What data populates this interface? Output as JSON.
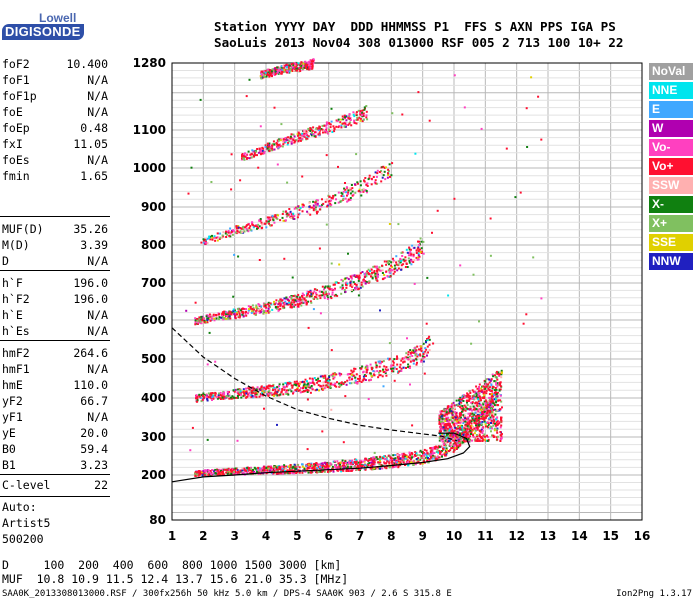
{
  "logo": {
    "top": "Lowell",
    "bottom": "DIGISONDE"
  },
  "header": {
    "line1": "Station YYYY DAY  DDD HHMMSS P1  FFS S AXN PPS IGA PS",
    "line2": "SaoLuis 2013 Nov04 308 013000 RSF 005 2 713 100 10+ 22"
  },
  "params": [
    {
      "name": "foF2",
      "value": "10.400"
    },
    {
      "name": "foF1",
      "value": "N/A"
    },
    {
      "name": "foF1p",
      "value": "N/A"
    },
    {
      "name": "foE",
      "value": "N/A"
    },
    {
      "name": "foEp",
      "value": "0.48"
    },
    {
      "name": "fxI",
      "value": "11.05"
    },
    {
      "name": "foEs",
      "value": "N/A"
    },
    {
      "name": "fmin",
      "value": "1.65"
    },
    {
      "name": "MUF(D)",
      "value": "35.26"
    },
    {
      "name": "M(D)",
      "value": "3.39"
    },
    {
      "name": "D",
      "value": "N/A"
    },
    {
      "name": "h`F",
      "value": "196.0"
    },
    {
      "name": "h`F2",
      "value": "196.0"
    },
    {
      "name": "h`E",
      "value": "N/A"
    },
    {
      "name": "h`Es",
      "value": "N/A"
    },
    {
      "name": "hmF2",
      "value": "264.6"
    },
    {
      "name": "hmF1",
      "value": "N/A"
    },
    {
      "name": "hmE",
      "value": "110.0"
    },
    {
      "name": "yF2",
      "value": "66.7"
    },
    {
      "name": "yF1",
      "value": "N/A"
    },
    {
      "name": "yE",
      "value": "20.0"
    },
    {
      "name": "B0",
      "value": "59.4"
    },
    {
      "name": "B1",
      "value": "3.23"
    },
    {
      "name": "C-level",
      "value": "22"
    }
  ],
  "auto": [
    "Auto:",
    "Artist5",
    "500200"
  ],
  "footer": {
    "d_line": "D     100  200  400  600  800 1000 1500 3000 [km]",
    "muf_line": "MUF  10.8 10.9 11.5 12.4 13.7 15.6 21.0 35.3 [MHz]",
    "file_line": "SAA0K_2013308013000.RSF / 300fx256h 50 kHz 5.0 km / DPS-4 SAA0K 903 / 2.6 S 315.8 E",
    "version": "Ion2Png 1.3.17"
  },
  "legend": [
    {
      "label": "NoVal",
      "color": "#a0a0a0"
    },
    {
      "label": "NNE",
      "color": "#00e5ee"
    },
    {
      "label": "E",
      "color": "#40a8ff"
    },
    {
      "label": "W",
      "color": "#b000b0"
    },
    {
      "label": "Vo-",
      "color": "#ff40c0"
    },
    {
      "label": "Vo+",
      "color": "#ff1030"
    },
    {
      "label": "SSW",
      "color": "#ffb0b0"
    },
    {
      "label": "X-",
      "color": "#108010"
    },
    {
      "label": "X+",
      "color": "#80c060"
    },
    {
      "label": "SSE",
      "color": "#e0d000"
    },
    {
      "label": "NNW",
      "color": "#2020c0"
    }
  ],
  "chart_data": {
    "type": "scatter",
    "x_label": "",
    "y_label": "",
    "xlim": [
      1,
      16
    ],
    "ylim": [
      80,
      1280
    ],
    "x_ticks": [
      1,
      2,
      3,
      4,
      5,
      6,
      7,
      8,
      9,
      10,
      11,
      12,
      13,
      14,
      15,
      16
    ],
    "y_ticks": [
      80,
      200,
      300,
      400,
      500,
      600,
      700,
      800,
      900,
      1000,
      1100,
      1280
    ],
    "grid": true,
    "traces": [
      {
        "name": "O1",
        "points": [
          [
            1.7,
            206
          ],
          [
            2,
            208
          ],
          [
            3,
            212
          ],
          [
            4,
            215
          ],
          [
            5,
            219
          ],
          [
            6,
            224
          ],
          [
            7,
            230
          ],
          [
            8,
            238
          ],
          [
            9,
            250
          ],
          [
            9.5,
            262
          ],
          [
            10,
            285
          ],
          [
            10.3,
            310
          ],
          [
            10.6,
            340
          ],
          [
            11,
            370
          ],
          [
            11.4,
            420
          ]
        ]
      },
      {
        "name": "O2",
        "points": [
          [
            1.7,
            400
          ],
          [
            2,
            405
          ],
          [
            3,
            413
          ],
          [
            4,
            420
          ],
          [
            5,
            430
          ],
          [
            6,
            445
          ],
          [
            7,
            462
          ],
          [
            8,
            485
          ],
          [
            8.5,
            500
          ],
          [
            9,
            520
          ],
          [
            9.2,
            540
          ]
        ]
      },
      {
        "name": "O3",
        "points": [
          [
            1.7,
            600
          ],
          [
            2,
            605
          ],
          [
            3,
            620
          ],
          [
            4,
            636
          ],
          [
            5,
            655
          ],
          [
            6,
            680
          ],
          [
            7,
            710
          ],
          [
            8,
            745
          ],
          [
            8.5,
            770
          ],
          [
            9,
            800
          ]
        ]
      },
      {
        "name": "O4",
        "points": [
          [
            1.9,
            810
          ],
          [
            3,
            840
          ],
          [
            4,
            862
          ],
          [
            5,
            890
          ],
          [
            6,
            915
          ],
          [
            7,
            950
          ],
          [
            7.5,
            975
          ],
          [
            8,
            1000
          ]
        ]
      },
      {
        "name": "O5",
        "points": [
          [
            3.2,
            1030
          ],
          [
            4,
            1055
          ],
          [
            5,
            1085
          ],
          [
            6,
            1110
          ],
          [
            7,
            1140
          ],
          [
            7.2,
            1150
          ]
        ]
      },
      {
        "name": "O6",
        "points": [
          [
            3.8,
            1250
          ],
          [
            4.5,
            1265
          ],
          [
            5.5,
            1280
          ]
        ]
      }
    ],
    "model_curves": [
      {
        "name": "dashed",
        "style": "dashed",
        "points": [
          [
            1,
            580
          ],
          [
            2,
            505
          ],
          [
            3,
            450
          ],
          [
            4,
            405
          ],
          [
            5,
            370
          ],
          [
            6,
            348
          ],
          [
            7,
            330
          ],
          [
            8,
            318
          ],
          [
            9,
            308
          ],
          [
            9.6,
            302
          ],
          [
            10.1,
            290
          ]
        ]
      },
      {
        "name": "solid",
        "style": "solid",
        "points": [
          [
            1,
            182
          ],
          [
            2,
            195
          ],
          [
            3,
            200
          ],
          [
            4,
            206
          ],
          [
            5,
            210
          ],
          [
            6,
            214
          ],
          [
            7,
            218
          ],
          [
            8,
            225
          ],
          [
            9,
            233
          ],
          [
            9.8,
            243
          ],
          [
            10.3,
            258
          ],
          [
            10.5,
            275
          ],
          [
            10.4,
            296
          ],
          [
            10,
            310
          ],
          [
            9.5,
            310
          ]
        ]
      }
    ],
    "spread_cluster": {
      "x": [
        9.5,
        11.5
      ],
      "y": [
        290,
        480
      ]
    }
  }
}
